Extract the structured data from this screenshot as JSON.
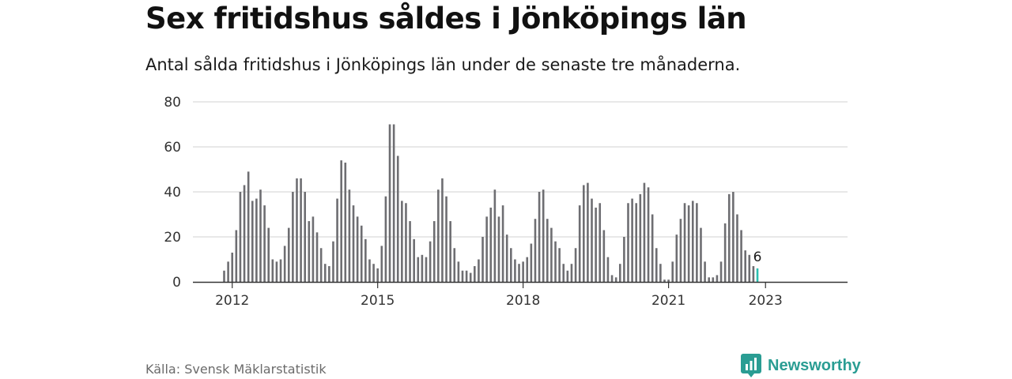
{
  "title": "Sex fritidshus såldes i Jönköpings län",
  "subtitle": "Antal sålda fritidshus i Jönköpings län under de senaste tre månaderna.",
  "source": "Källa: Svensk Mäklarstatistik",
  "brand": "Newsworthy",
  "colors": {
    "bar": "#6e6e72",
    "highlight": "#2cbfb0",
    "grid": "#d9d9d9",
    "axis": "#333333",
    "brand": "#2a9d93"
  },
  "chart_data": {
    "type": "bar",
    "x_start": "2011-11",
    "x_interval": "month",
    "values": [
      5,
      9,
      13,
      23,
      40,
      43,
      49,
      36,
      37,
      41,
      34,
      24,
      10,
      9,
      10,
      16,
      24,
      40,
      46,
      46,
      40,
      27,
      29,
      22,
      15,
      8,
      7,
      18,
      37,
      54,
      53,
      41,
      34,
      29,
      25,
      19,
      10,
      8,
      6,
      16,
      38,
      70,
      70,
      56,
      36,
      35,
      27,
      19,
      11,
      12,
      11,
      18,
      27,
      41,
      46,
      38,
      27,
      15,
      9,
      5,
      5,
      4,
      7,
      10,
      20,
      29,
      33,
      41,
      29,
      34,
      21,
      15,
      10,
      8,
      9,
      11,
      17,
      28,
      40,
      41,
      28,
      24,
      18,
      15,
      8,
      5,
      8,
      15,
      34,
      43,
      44,
      37,
      33,
      35,
      23,
      11,
      3,
      2,
      8,
      20,
      35,
      37,
      35,
      39,
      44,
      42,
      30,
      15,
      8,
      1,
      1,
      9,
      21,
      28,
      35,
      34,
      36,
      35,
      24,
      9,
      2,
      2,
      3,
      9,
      26,
      39,
      40,
      30,
      23,
      14,
      12,
      7,
      6
    ],
    "highlight_last": true,
    "annotation": "6",
    "x_ticks": [
      "2012",
      "2015",
      "2018",
      "2021",
      "2023"
    ],
    "y_ticks": [
      "0",
      "20",
      "40",
      "60",
      "80"
    ],
    "ylim": [
      0,
      80
    ],
    "grid": true
  }
}
